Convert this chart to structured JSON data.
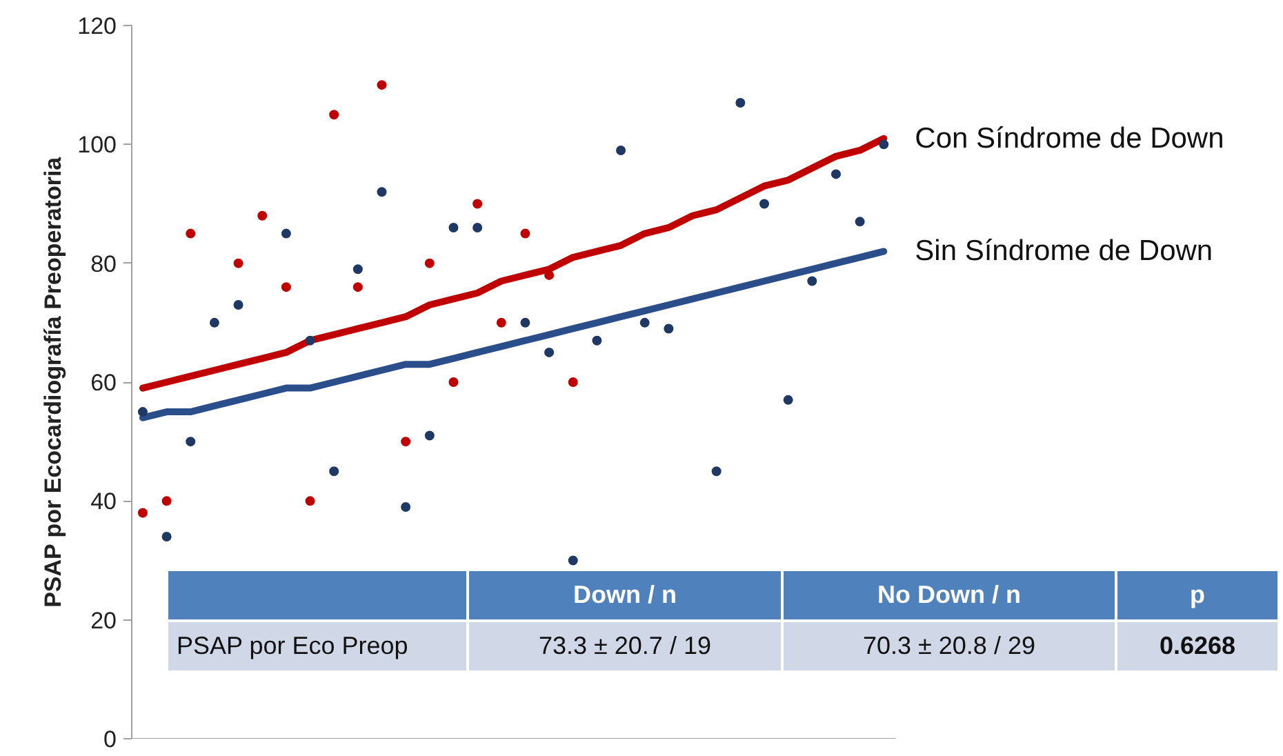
{
  "chart_data": {
    "type": "scatter",
    "ylabel": "PSAP por Ecocardiografía Preoperatoria",
    "categories": [
      null,
      null,
      null,
      null,
      null,
      null,
      null,
      null,
      null,
      null,
      null,
      null,
      null,
      null,
      null,
      null,
      null,
      null,
      null,
      null,
      null,
      null,
      null,
      null,
      null,
      null,
      null,
      null,
      null,
      null,
      null,
      null
    ],
    "ylim": [
      0,
      120
    ],
    "yticks": [
      0,
      20,
      40,
      60,
      80,
      100,
      120
    ],
    "tick_labels": "y",
    "grid": false,
    "marker": "circle",
    "series": [
      {
        "color": "#c00000",
        "values": [
          38,
          40,
          85,
          null,
          80,
          88,
          76,
          40,
          105,
          76,
          110,
          50,
          80,
          60,
          90,
          70,
          85,
          78,
          60,
          null,
          null,
          null,
          null,
          null,
          null,
          null,
          null,
          null,
          null,
          null,
          null,
          null
        ]
      },
      {
        "color": "#1f3864",
        "values": [
          55,
          34,
          50,
          70,
          73,
          null,
          85,
          67,
          45,
          79,
          92,
          39,
          51,
          86,
          86,
          null,
          70,
          65,
          30,
          67,
          99,
          70,
          69,
          null,
          45,
          107,
          90,
          57,
          77,
          95,
          87,
          100
        ]
      },
      {
        "type": "line",
        "marker": "none",
        "name": "Con Síndrome de Down",
        "color": "#c00000",
        "values": [
          59,
          60,
          61,
          62,
          63,
          64,
          65,
          67,
          68,
          69,
          70,
          71,
          73,
          74,
          75,
          77,
          78,
          79,
          81,
          82,
          83,
          85,
          86,
          88,
          89,
          91,
          93,
          94,
          96,
          98,
          99,
          101
        ]
      },
      {
        "type": "line",
        "marker": "none",
        "name": "Sin   Síndrome de Down",
        "color": "#2a4e8a",
        "values": [
          54,
          55,
          55,
          56,
          57,
          58,
          59,
          59,
          60,
          61,
          62,
          63,
          63,
          64,
          65,
          66,
          67,
          68,
          69,
          70,
          71,
          72,
          73,
          74,
          75,
          76,
          77,
          78,
          79,
          80,
          81,
          82
        ]
      }
    ],
    "annotations": [
      "Down / n",
      "No Down / n",
      "p",
      "PSAP por Eco Preop",
      "73.3 ± 20.7 / 19",
      "70.3 ± 20.8 / 29",
      "0.6268"
    ]
  }
}
